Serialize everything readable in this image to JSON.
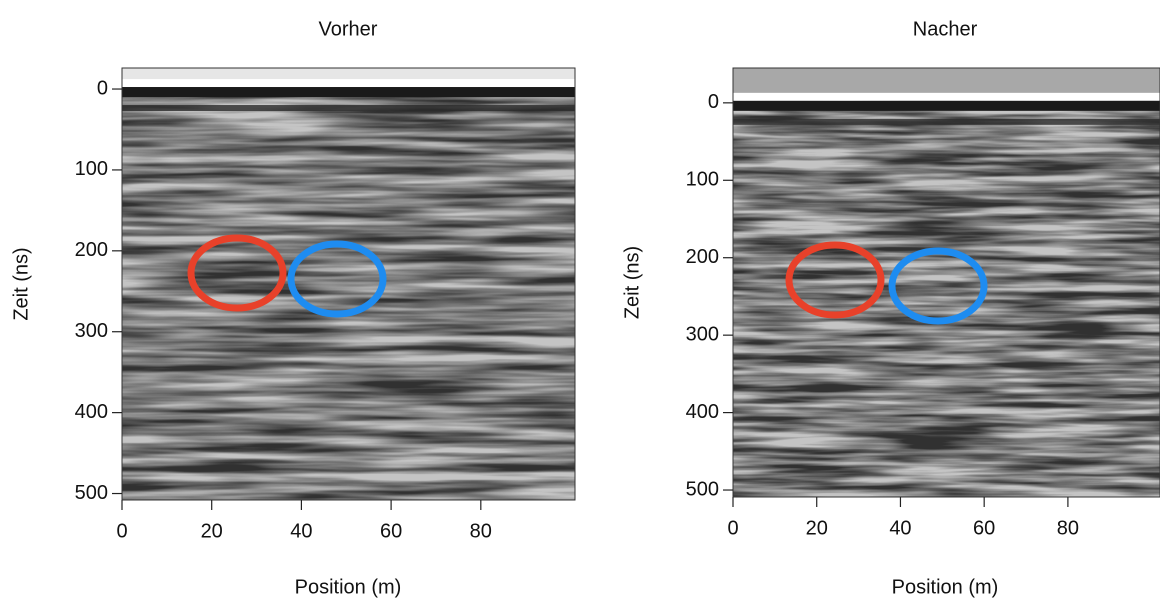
{
  "chart_data": [
    {
      "type": "image",
      "title": "Vorher",
      "xlabel": "Position (m)",
      "ylabel": "Zeit (ns)",
      "xlim": [
        0,
        101
      ],
      "xticks": [
        0,
        20,
        40,
        60,
        80
      ],
      "ylim": [
        -26,
        508
      ],
      "yticks": [
        0,
        100,
        200,
        300,
        400,
        500
      ],
      "y_inverted": true
    },
    {
      "type": "image",
      "title": "Nacher",
      "xlabel": "Position (m)",
      "ylabel": "Zeit (ns)",
      "xlim": [
        0,
        102
      ],
      "xticks": [
        0,
        20,
        40,
        60,
        80
      ],
      "ylim": [
        -45,
        509
      ],
      "yticks": [
        0,
        100,
        200,
        300,
        400,
        500
      ],
      "y_inverted": true
    }
  ]
}
